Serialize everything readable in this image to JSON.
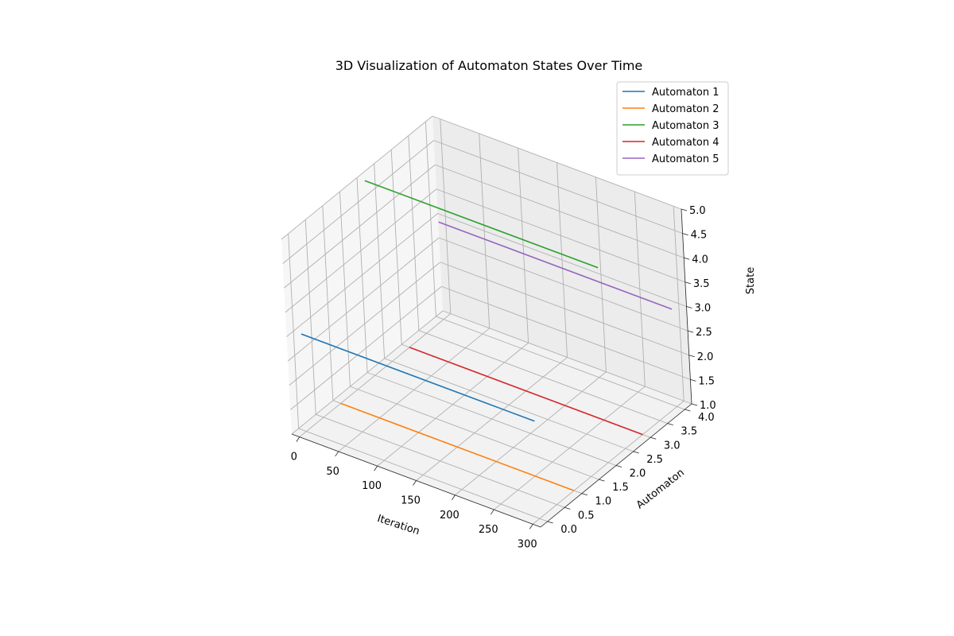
{
  "chart_data": {
    "type": "line",
    "title": "3D Visualization of Automaton States Over Time",
    "xlabel": "Iteration",
    "ylabel": "Automaton",
    "zlabel": "State",
    "xlim": [
      -10,
      310
    ],
    "ylim": [
      -0.2,
      4.2
    ],
    "zlim": [
      1,
      5
    ],
    "x_ticks": [
      "0",
      "50",
      "100",
      "150",
      "200",
      "250",
      "300"
    ],
    "y_ticks": [
      "0.0",
      "0.5",
      "1.0",
      "1.5",
      "2.0",
      "2.5",
      "3.0",
      "3.5",
      "4.0"
    ],
    "z_ticks": [
      "1.0",
      "1.5",
      "2.0",
      "2.5",
      "3.0",
      "3.5",
      "4.0",
      "4.5",
      "5.0"
    ],
    "grid": true,
    "legend_position": "top-right",
    "series": [
      {
        "name": "Automaton 1",
        "color": "#1f77b4",
        "x": [
          0,
          300
        ],
        "y": [
          0,
          0
        ],
        "z": [
          3,
          3
        ]
      },
      {
        "name": "Automaton 2",
        "color": "#ff7f0e",
        "x": [
          0,
          300
        ],
        "y": [
          1,
          1
        ],
        "z": [
          1,
          1
        ]
      },
      {
        "name": "Automaton 3",
        "color": "#2ca02c",
        "x": [
          0,
          300
        ],
        "y": [
          2,
          2
        ],
        "z": [
          5,
          5
        ]
      },
      {
        "name": "Automaton 4",
        "color": "#d62728",
        "x": [
          0,
          300
        ],
        "y": [
          3,
          3
        ],
        "z": [
          1,
          1
        ]
      },
      {
        "name": "Automaton 5",
        "color": "#9467bd",
        "x": [
          0,
          300
        ],
        "y": [
          4,
          4
        ],
        "z": [
          3,
          3
        ]
      }
    ]
  }
}
